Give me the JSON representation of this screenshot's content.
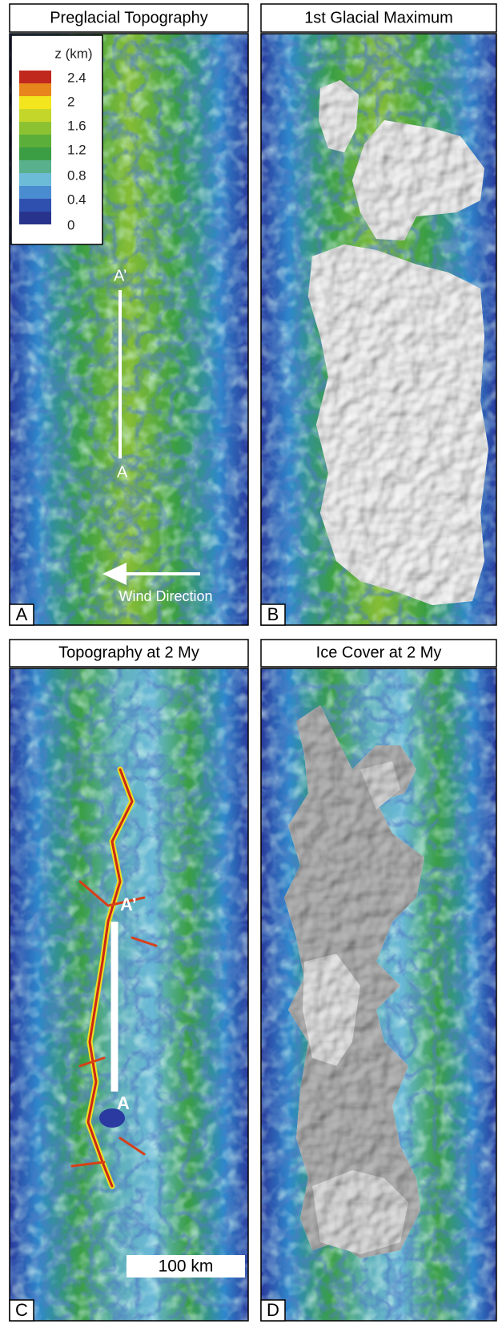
{
  "panels": [
    {
      "title": "Preglacial Topography",
      "letter": "A"
    },
    {
      "title": "1st Glacial Maximum",
      "letter": "B"
    },
    {
      "title": "Topography at 2 My",
      "letter": "C"
    },
    {
      "title": "Ice Cover at 2 My",
      "letter": "D"
    }
  ],
  "legend": {
    "title": "z (km)",
    "labels": [
      "2.4",
      "2",
      "1.6",
      "1.2",
      "0.8",
      "0.4",
      "0"
    ]
  },
  "annotations": {
    "a_profile_top": "A’",
    "a_profile_bottom": "A",
    "wind": "Wind Direction",
    "c_profile_top": "A’",
    "c_profile_bottom": "A",
    "scale_bar": "100 km"
  }
}
